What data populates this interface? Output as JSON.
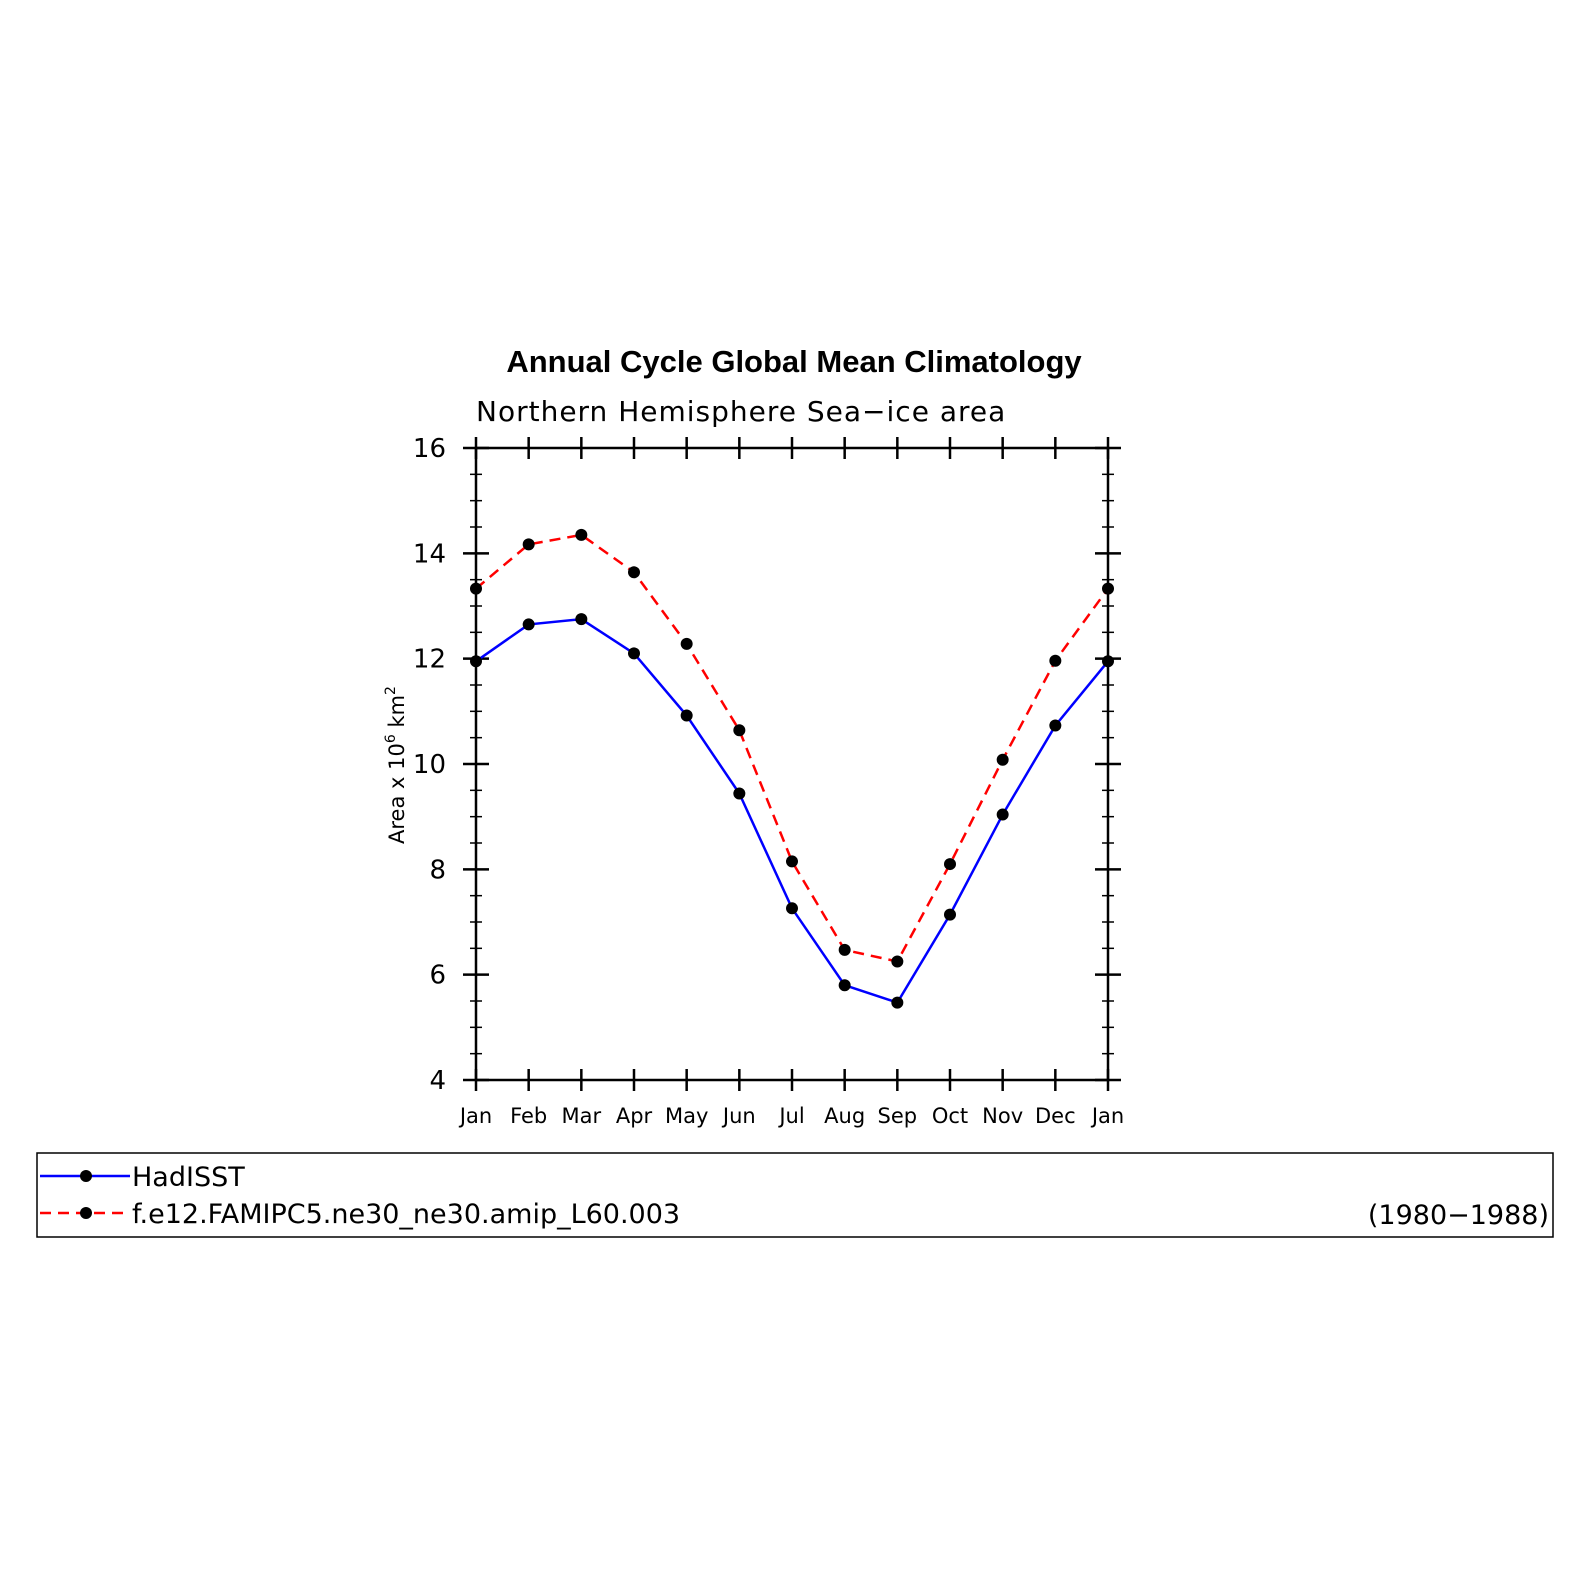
{
  "chart_data": {
    "type": "line",
    "title": "Annual Cycle Global Mean Climatology",
    "subtitle": "Northern Hemisphere Sea−ice area",
    "ylabel_prefix": "Area x 10",
    "ylabel_exp1": "6",
    "ylabel_mid": " km",
    "ylabel_exp2": "2",
    "ylim": [
      4,
      16
    ],
    "yticks": [
      4,
      6,
      8,
      10,
      12,
      14,
      16
    ],
    "yminor_step": 0.5,
    "categories": [
      "Jan",
      "Feb",
      "Mar",
      "Apr",
      "May",
      "Jun",
      "Jul",
      "Aug",
      "Sep",
      "Oct",
      "Nov",
      "Dec",
      "Jan"
    ],
    "series": [
      {
        "name": "HadISST",
        "color": "#0000ff",
        "dash": "solid",
        "values": [
          11.95,
          12.65,
          12.75,
          12.1,
          10.92,
          9.44,
          7.26,
          5.8,
          5.47,
          7.14,
          9.04,
          10.73,
          11.95
        ]
      },
      {
        "name": "f.e12.FAMIPC5.ne30_ne30.amip_L60.003",
        "color": "#ff0000",
        "dash": "dashed",
        "values": [
          13.33,
          14.17,
          14.35,
          13.64,
          12.28,
          10.64,
          8.15,
          6.47,
          6.25,
          8.1,
          10.08,
          11.96,
          13.33
        ]
      }
    ],
    "legend_note": "(1980−1988)",
    "legend_position": "bottom",
    "grid": false
  }
}
